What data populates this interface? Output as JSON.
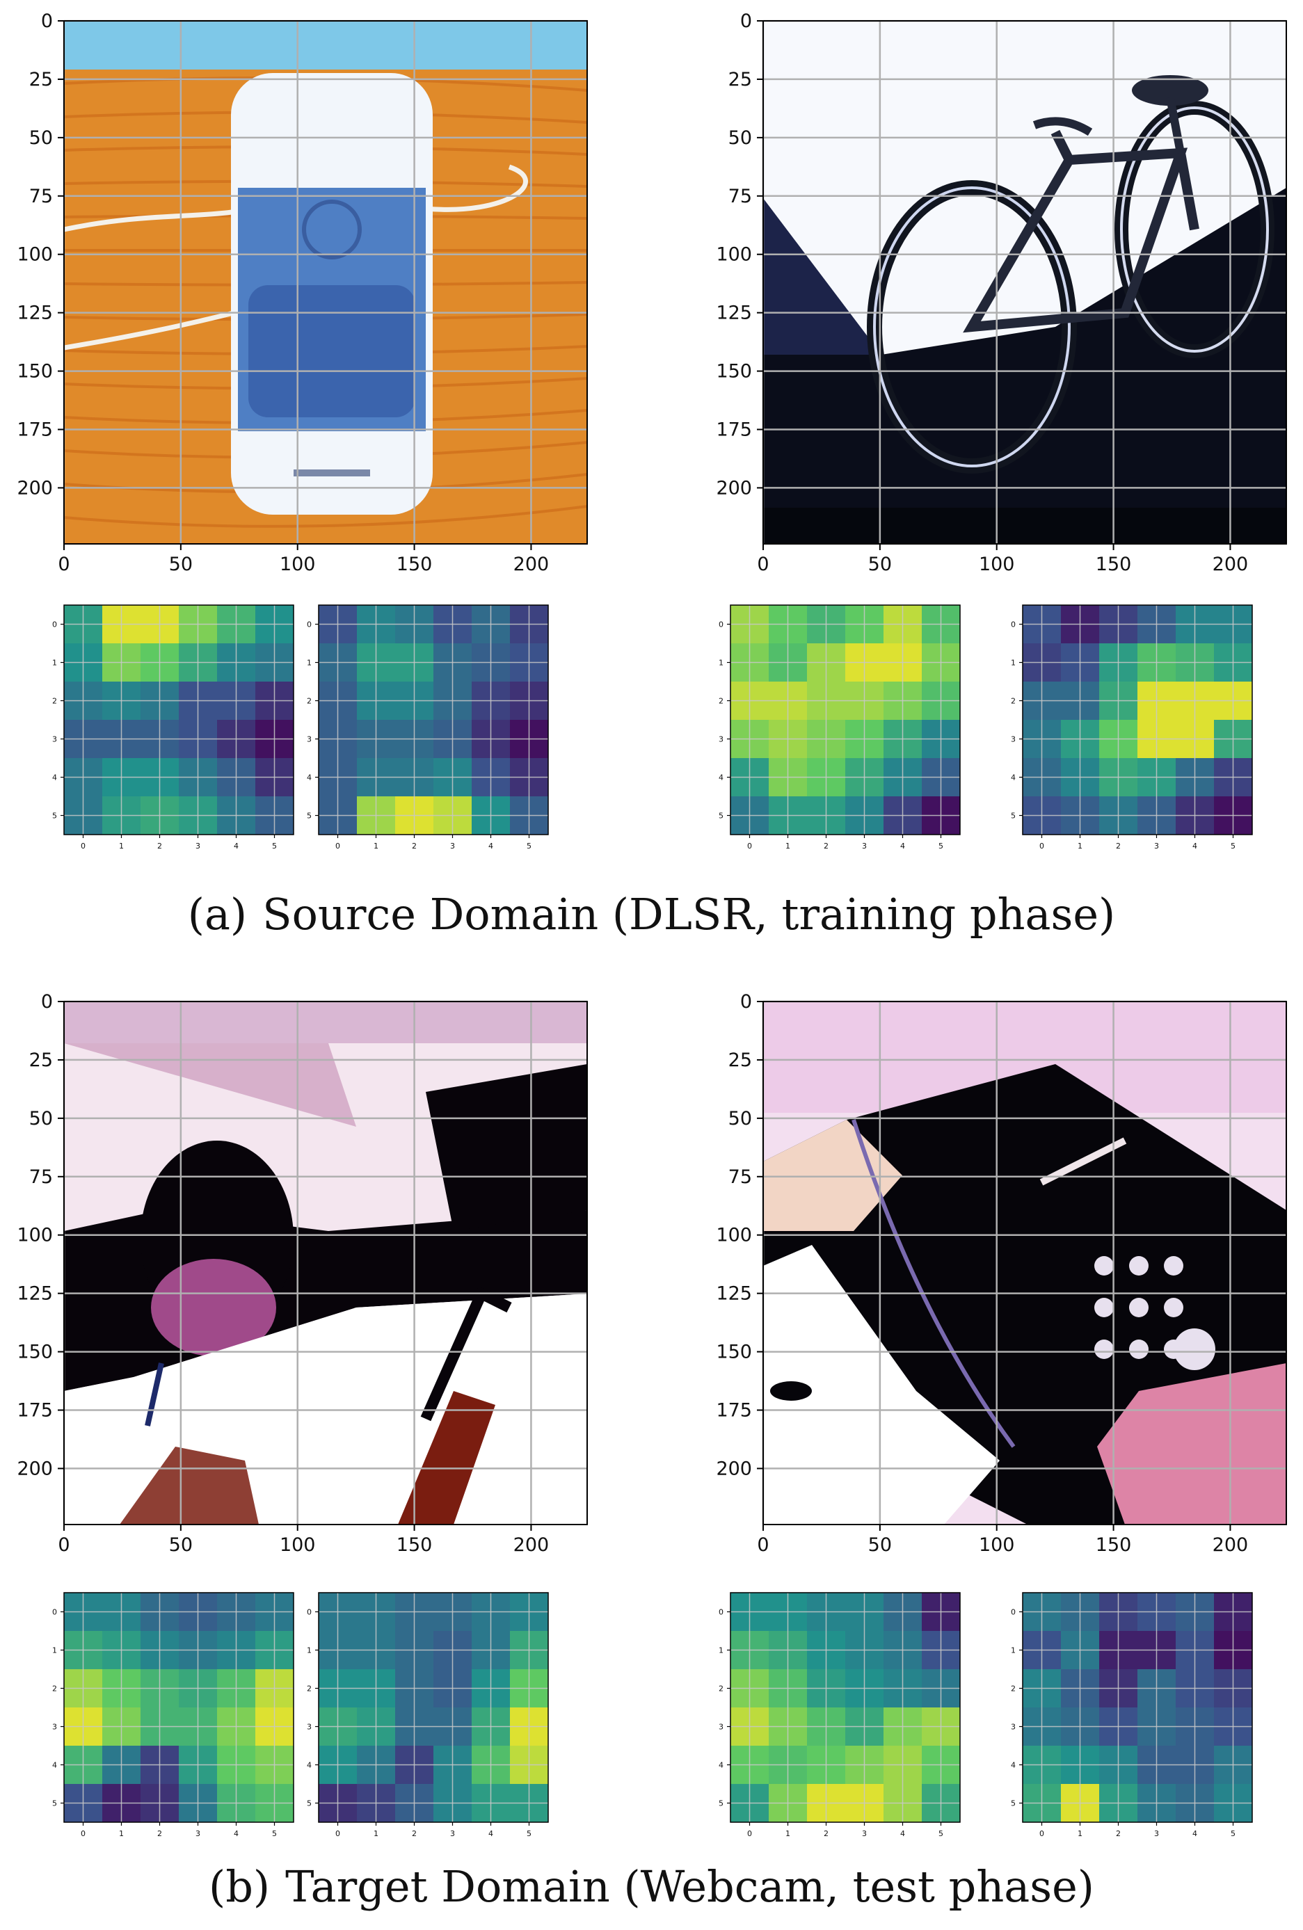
{
  "figure": {
    "caption_a": {
      "label": "(a)",
      "text": "Source Domain (DLSR, training phase)"
    },
    "caption_b": {
      "label": "(b)",
      "text": "Target Domain (Webcam, test phase)"
    }
  },
  "chart_data": [
    {
      "type": "image",
      "panel": "a-left",
      "content": "speaker on wooden table",
      "xlim": [
        0,
        224
      ],
      "ylim": [
        224,
        0
      ],
      "xticks": [
        0,
        50,
        100,
        150,
        200
      ],
      "yticks": [
        0,
        25,
        50,
        75,
        100,
        125,
        150,
        175,
        200
      ],
      "grid": true,
      "palette": {
        "bg": "#e08a2a",
        "wall": "#7ec8e8",
        "body": "#f2f6fb",
        "panel": "#4f7fc4",
        "grill": "#3b64ad",
        "cable": "#f4f1ea"
      }
    },
    {
      "type": "heatmap",
      "panel": "a-left-map-1",
      "x": [
        0,
        1,
        2,
        3,
        4,
        5
      ],
      "y": [
        0,
        1,
        2,
        3,
        4,
        5
      ],
      "colormap": "viridis",
      "grid": true,
      "values": [
        [
          0.55,
          0.95,
          0.95,
          0.8,
          0.65,
          0.5
        ],
        [
          0.5,
          0.8,
          0.75,
          0.6,
          0.45,
          0.4
        ],
        [
          0.4,
          0.45,
          0.4,
          0.25,
          0.25,
          0.15
        ],
        [
          0.3,
          0.3,
          0.3,
          0.25,
          0.15,
          0.05
        ],
        [
          0.4,
          0.5,
          0.5,
          0.4,
          0.3,
          0.15
        ],
        [
          0.4,
          0.55,
          0.6,
          0.55,
          0.4,
          0.3
        ]
      ]
    },
    {
      "type": "heatmap",
      "panel": "a-left-map-2",
      "x": [
        0,
        1,
        2,
        3,
        4,
        5
      ],
      "y": [
        0,
        1,
        2,
        3,
        4,
        5
      ],
      "colormap": "viridis",
      "grid": true,
      "values": [
        [
          0.25,
          0.45,
          0.4,
          0.25,
          0.35,
          0.2
        ],
        [
          0.35,
          0.55,
          0.55,
          0.35,
          0.3,
          0.25
        ],
        [
          0.3,
          0.45,
          0.45,
          0.35,
          0.2,
          0.15
        ],
        [
          0.3,
          0.35,
          0.35,
          0.3,
          0.15,
          0.05
        ],
        [
          0.3,
          0.4,
          0.4,
          0.45,
          0.25,
          0.15
        ],
        [
          0.3,
          0.85,
          0.95,
          0.9,
          0.5,
          0.3
        ]
      ]
    },
    {
      "type": "image",
      "panel": "a-right",
      "content": "bicycle in front of wall",
      "xlim": [
        0,
        224
      ],
      "ylim": [
        224,
        0
      ],
      "xticks": [
        0,
        50,
        100,
        150,
        200
      ],
      "yticks": [
        0,
        25,
        50,
        75,
        100,
        125,
        150,
        175,
        200
      ],
      "grid": true,
      "palette": {
        "bg": "#f7f9fd",
        "floor": "#0a0d1a",
        "wall_shadow": "#1c2349",
        "frame": "#222738",
        "tire": "#11151f"
      }
    },
    {
      "type": "heatmap",
      "panel": "a-right-map-1",
      "x": [
        0,
        1,
        2,
        3,
        4,
        5
      ],
      "y": [
        0,
        1,
        2,
        3,
        4,
        5
      ],
      "colormap": "viridis",
      "grid": true,
      "values": [
        [
          0.85,
          0.75,
          0.65,
          0.75,
          0.9,
          0.7
        ],
        [
          0.8,
          0.7,
          0.85,
          0.95,
          0.95,
          0.8
        ],
        [
          0.9,
          0.9,
          0.85,
          0.85,
          0.8,
          0.7
        ],
        [
          0.8,
          0.85,
          0.8,
          0.75,
          0.6,
          0.45
        ],
        [
          0.55,
          0.8,
          0.75,
          0.6,
          0.45,
          0.3
        ],
        [
          0.4,
          0.55,
          0.55,
          0.45,
          0.2,
          0.05
        ]
      ]
    },
    {
      "type": "heatmap",
      "panel": "a-right-map-2",
      "x": [
        0,
        1,
        2,
        3,
        4,
        5
      ],
      "y": [
        0,
        1,
        2,
        3,
        4,
        5
      ],
      "colormap": "viridis",
      "grid": true,
      "values": [
        [
          0.25,
          0.1,
          0.2,
          0.3,
          0.45,
          0.45
        ],
        [
          0.2,
          0.25,
          0.55,
          0.7,
          0.65,
          0.55
        ],
        [
          0.35,
          0.35,
          0.6,
          0.95,
          0.95,
          0.95
        ],
        [
          0.4,
          0.55,
          0.75,
          0.95,
          0.95,
          0.6
        ],
        [
          0.35,
          0.45,
          0.6,
          0.55,
          0.35,
          0.2
        ],
        [
          0.25,
          0.3,
          0.4,
          0.3,
          0.15,
          0.05
        ]
      ]
    },
    {
      "type": "image",
      "panel": "b-left",
      "content": "desk lamp on desk",
      "xlim": [
        0,
        224
      ],
      "ylim": [
        224,
        0
      ],
      "xticks": [
        0,
        50,
        100,
        150,
        200
      ],
      "yticks": [
        0,
        25,
        50,
        75,
        100,
        125,
        150,
        175,
        200
      ],
      "grid": true,
      "palette": {
        "bg": "#f4e6ef",
        "wall": "#d9b7d3",
        "dark": "#08040a",
        "paper": "#ffffff",
        "shade": "#a04a8a",
        "warm": "#7a1d10"
      }
    },
    {
      "type": "heatmap",
      "panel": "b-left-map-1",
      "x": [
        0,
        1,
        2,
        3,
        4,
        5
      ],
      "y": [
        0,
        1,
        2,
        3,
        4,
        5
      ],
      "colormap": "viridis",
      "grid": true,
      "values": [
        [
          0.45,
          0.45,
          0.35,
          0.3,
          0.35,
          0.4
        ],
        [
          0.6,
          0.55,
          0.45,
          0.4,
          0.45,
          0.55
        ],
        [
          0.85,
          0.75,
          0.65,
          0.6,
          0.7,
          0.9
        ],
        [
          0.95,
          0.8,
          0.65,
          0.65,
          0.8,
          0.95
        ],
        [
          0.65,
          0.4,
          0.2,
          0.55,
          0.75,
          0.8
        ],
        [
          0.25,
          0.1,
          0.15,
          0.4,
          0.65,
          0.7
        ]
      ]
    },
    {
      "type": "heatmap",
      "panel": "b-left-map-2",
      "x": [
        0,
        1,
        2,
        3,
        4,
        5
      ],
      "y": [
        0,
        1,
        2,
        3,
        4,
        5
      ],
      "colormap": "viridis",
      "grid": true,
      "values": [
        [
          0.4,
          0.4,
          0.35,
          0.35,
          0.4,
          0.45
        ],
        [
          0.4,
          0.4,
          0.35,
          0.3,
          0.4,
          0.6
        ],
        [
          0.5,
          0.5,
          0.35,
          0.3,
          0.5,
          0.75
        ],
        [
          0.6,
          0.55,
          0.35,
          0.35,
          0.6,
          0.95
        ],
        [
          0.5,
          0.4,
          0.2,
          0.45,
          0.7,
          0.9
        ],
        [
          0.15,
          0.2,
          0.3,
          0.45,
          0.55,
          0.55
        ]
      ]
    },
    {
      "type": "image",
      "panel": "b-right",
      "content": "telephone on desk",
      "xlim": [
        0,
        224
      ],
      "ylim": [
        224,
        0
      ],
      "xticks": [
        0,
        50,
        100,
        150,
        200
      ],
      "yticks": [
        0,
        25,
        50,
        75,
        100,
        125,
        150,
        175,
        200
      ],
      "grid": true,
      "palette": {
        "bg": "#f3dff0",
        "wall": "#e7b8df",
        "dark": "#06050a",
        "paper": "#ffffff",
        "pink": "#dd84a6",
        "cream": "#f2d5c5"
      }
    },
    {
      "type": "heatmap",
      "panel": "b-right-map-1",
      "x": [
        0,
        1,
        2,
        3,
        4,
        5
      ],
      "y": [
        0,
        1,
        2,
        3,
        4,
        5
      ],
      "colormap": "viridis",
      "grid": true,
      "values": [
        [
          0.5,
          0.5,
          0.45,
          0.45,
          0.35,
          0.1
        ],
        [
          0.65,
          0.6,
          0.5,
          0.45,
          0.4,
          0.25
        ],
        [
          0.8,
          0.7,
          0.55,
          0.5,
          0.45,
          0.4
        ],
        [
          0.9,
          0.8,
          0.7,
          0.6,
          0.8,
          0.85
        ],
        [
          0.75,
          0.7,
          0.75,
          0.8,
          0.85,
          0.75
        ],
        [
          0.55,
          0.8,
          0.95,
          0.95,
          0.85,
          0.6
        ]
      ]
    },
    {
      "type": "heatmap",
      "panel": "b-right-map-2",
      "x": [
        0,
        1,
        2,
        3,
        4,
        5
      ],
      "y": [
        0,
        1,
        2,
        3,
        4,
        5
      ],
      "colormap": "viridis",
      "grid": true,
      "values": [
        [
          0.4,
          0.35,
          0.2,
          0.25,
          0.3,
          0.1
        ],
        [
          0.25,
          0.4,
          0.1,
          0.1,
          0.25,
          0.05
        ],
        [
          0.45,
          0.3,
          0.15,
          0.35,
          0.25,
          0.2
        ],
        [
          0.4,
          0.35,
          0.25,
          0.35,
          0.3,
          0.25
        ],
        [
          0.55,
          0.5,
          0.45,
          0.3,
          0.3,
          0.4
        ],
        [
          0.6,
          0.95,
          0.55,
          0.4,
          0.35,
          0.45
        ]
      ]
    }
  ]
}
